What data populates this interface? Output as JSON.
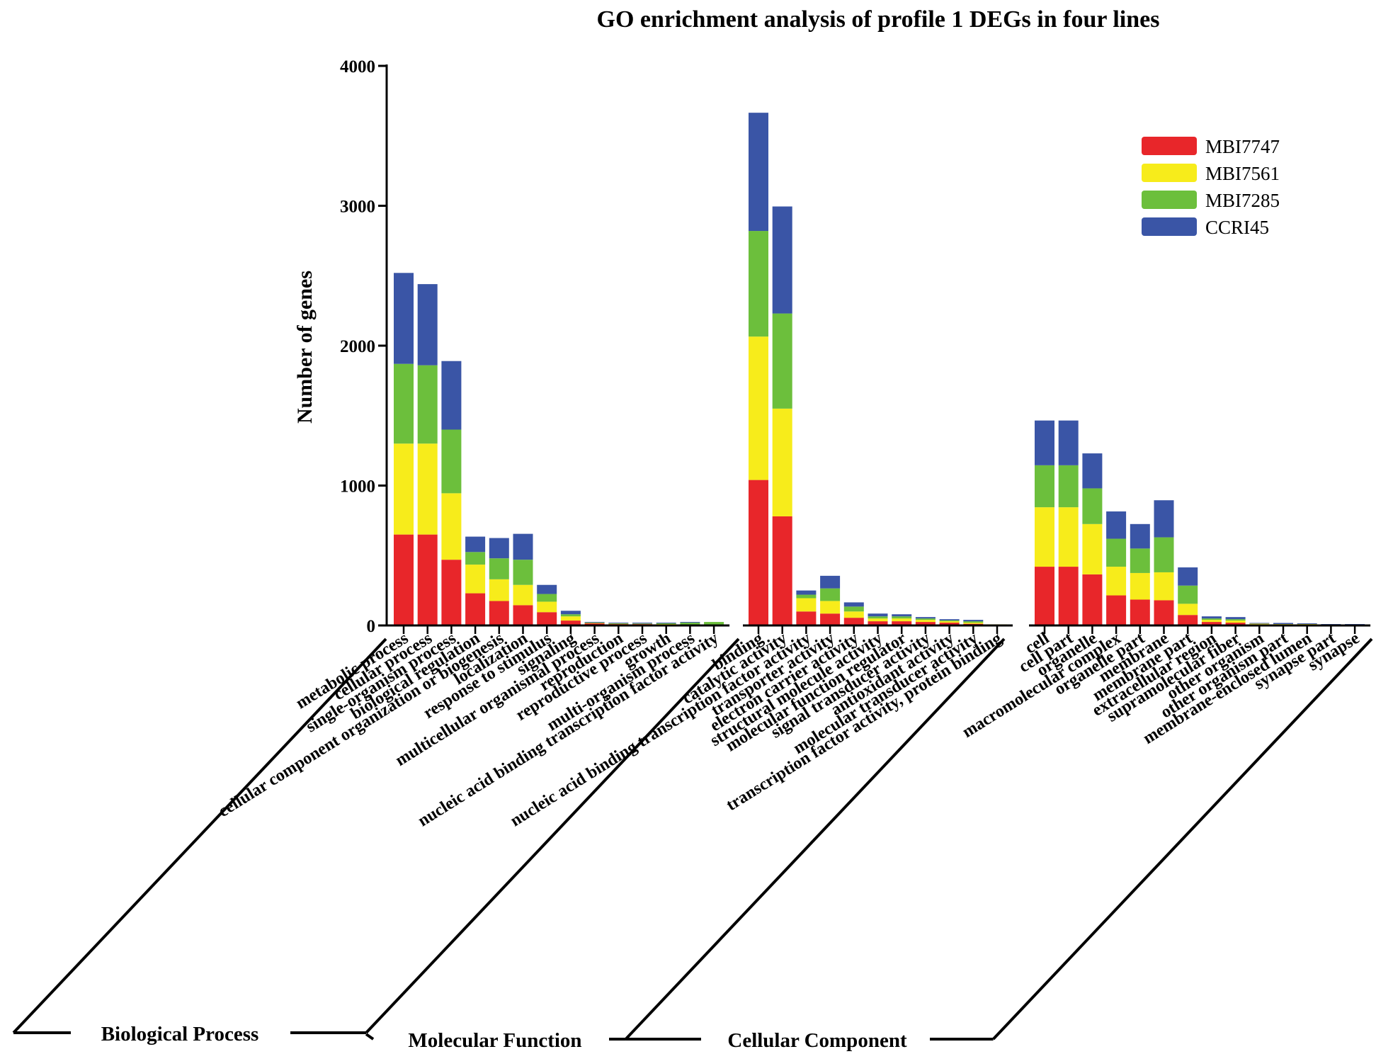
{
  "chart_data": {
    "type": "bar",
    "stacked": true,
    "title": "GO enrichment analysis of profile 1 DEGs in four lines",
    "xlabel": "",
    "ylabel": "Number of genes",
    "ylim": [
      0,
      4000
    ],
    "yticks": [
      0,
      1000,
      2000,
      3000,
      4000
    ],
    "ytick_labels": [
      "0",
      "1000",
      "2000",
      "3000",
      "4000"
    ],
    "grid": false,
    "legend_position": "top-right",
    "colors": {
      "MBI7747": "#e8262a",
      "MBI7561": "#f7ec1b",
      "MBI7285": "#6cbf3c",
      "CCRI45": "#3a55a6"
    },
    "groups": [
      {
        "name": "Biological Process",
        "categories": [
          "metabolic process",
          "cellular process",
          "single-organism process",
          "biological regulation",
          "cellular component organization or biogenesis",
          "localization",
          "response to stimulus",
          "signaling",
          "multicellular organismal process",
          "reproduction",
          "reproductive process",
          "growth",
          "multi-organism process",
          "nucleic acid binding transcription factor activity"
        ]
      },
      {
        "name": "Molecular Function",
        "categories": [
          "binding",
          "catalytic activity",
          "nucleic acid binding transcription factor activity",
          "transporter activity",
          "electron carrier activity",
          "structural molecule activity",
          "molecular function regulator",
          "signal transducer activity",
          "antioxidant activity",
          "molecular transducer activity",
          "transcription factor activity, protein binding"
        ]
      },
      {
        "name": "Cellular Component",
        "categories": [
          "cell",
          "cell part",
          "organelle",
          "macromolecular complex",
          "organelle part",
          "membrane",
          "membrane part",
          "extracellular region",
          "supramolecular fiber",
          "other organism",
          "other organism part",
          "membrane-enclosed lumen",
          "synapse part",
          "synapse"
        ]
      }
    ],
    "series": [
      {
        "name": "MBI7747",
        "values": [
          650,
          650,
          470,
          230,
          175,
          145,
          95,
          35,
          15,
          10,
          10,
          8,
          0,
          0,
          1040,
          780,
          100,
          85,
          55,
          30,
          30,
          25,
          20,
          12,
          0,
          420,
          420,
          365,
          215,
          185,
          180,
          75,
          25,
          20,
          8,
          5,
          5,
          0,
          0
        ]
      },
      {
        "name": "MBI7561",
        "values": [
          650,
          650,
          475,
          205,
          155,
          145,
          75,
          30,
          3,
          2,
          2,
          2,
          0,
          0,
          1025,
          770,
          95,
          90,
          45,
          20,
          20,
          15,
          10,
          8,
          8,
          425,
          425,
          360,
          205,
          190,
          200,
          80,
          15,
          15,
          5,
          5,
          5,
          0,
          0
        ]
      },
      {
        "name": "MBI7285",
        "values": [
          570,
          560,
          455,
          90,
          150,
          180,
          55,
          15,
          2,
          3,
          2,
          5,
          20,
          25,
          755,
          680,
          25,
          90,
          35,
          15,
          15,
          10,
          7,
          10,
          0,
          300,
          300,
          255,
          200,
          175,
          250,
          130,
          10,
          10,
          0,
          0,
          0,
          0,
          0
        ]
      },
      {
        "name": "CCRI45",
        "values": [
          650,
          580,
          490,
          110,
          145,
          185,
          65,
          25,
          5,
          5,
          6,
          5,
          5,
          0,
          845,
          765,
          30,
          90,
          30,
          20,
          15,
          10,
          8,
          10,
          0,
          320,
          320,
          250,
          195,
          175,
          265,
          130,
          15,
          15,
          5,
          8,
          5,
          10,
          10
        ]
      }
    ]
  }
}
